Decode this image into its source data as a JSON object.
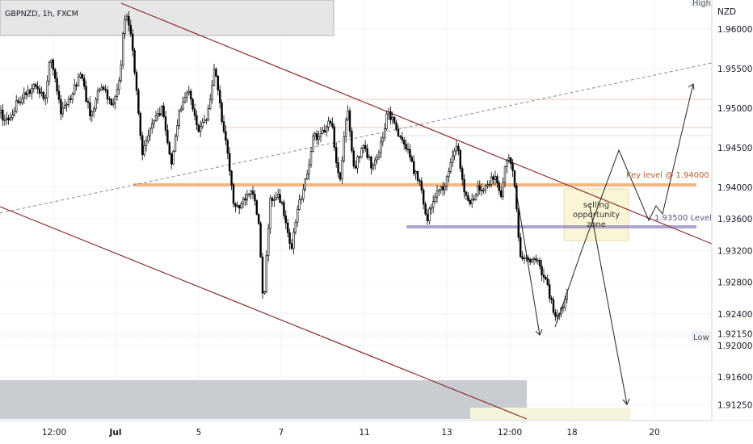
{
  "header": {
    "symbol_label": "GBPNZD, 1h, FXCM"
  },
  "chart_data": {
    "type": "candlestick",
    "title": "GBPNZD, 1h, FXCM",
    "currency_label": "NZD",
    "y_ticks": [
      "1.96000",
      "1.95500",
      "1.95000",
      "1.94500",
      "1.94000",
      "1.93600",
      "1.93200",
      "1.92800",
      "1.92400",
      "1.92150",
      "1.92000",
      "1.91600",
      "1.91250"
    ],
    "x_ticks": [
      "12:00",
      "Jul",
      "5",
      "7",
      "11",
      "13",
      "12:00",
      "18",
      "20"
    ],
    "ylim": [
      1.9104,
      1.9648
    ],
    "high_label": "High",
    "low_label": "Low",
    "low_value": 1.9215,
    "key_level_label": "Key level @ 1.94000",
    "key_level_value": 1.94,
    "level_2_label": "1.93500 Level",
    "level_2_value": 1.935,
    "zone_label": "selling opportunity zone",
    "grid": true,
    "colors": {
      "candle": "#000000",
      "channel": "#8b2c2c",
      "key_level": "#f4a460",
      "level_2": "#9a8fc4",
      "zone_fill": "#faf5d4",
      "dashed_trend": "#8c8c8c"
    }
  }
}
